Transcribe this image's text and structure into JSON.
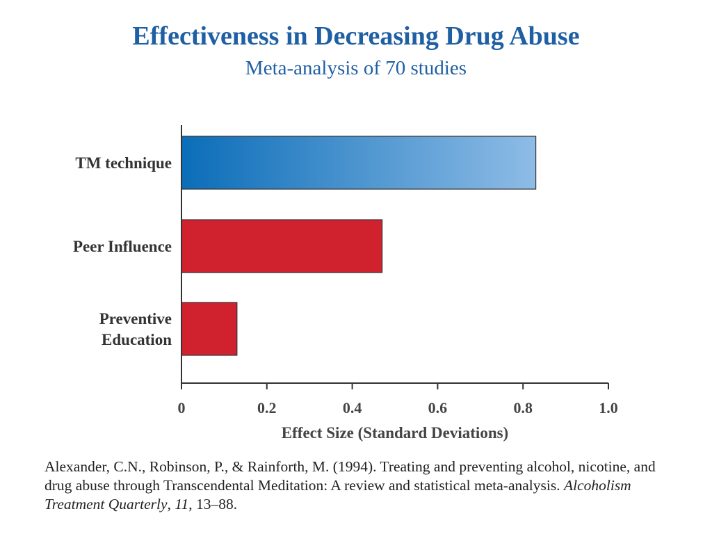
{
  "chart_data": {
    "type": "bar",
    "orientation": "horizontal",
    "title": "Effectiveness in Decreasing Drug Abuse",
    "subtitle": "Meta-analysis of 70 studies",
    "categories": [
      [
        "TM technique"
      ],
      [
        "Peer Influence"
      ],
      [
        "Preventive",
        "Education"
      ]
    ],
    "values": [
      0.83,
      0.47,
      0.13
    ],
    "bar_colors": [
      "gradient-blue",
      "#d0222e",
      "#d0222e"
    ],
    "gradient": {
      "from": "#0b6db8",
      "to": "#8ebce6"
    },
    "xlabel": "Effect Size (Standard Deviations)",
    "xlim": [
      0,
      1.0
    ],
    "xticks": [
      0,
      0.2,
      0.4,
      0.6,
      0.8,
      1.0
    ],
    "xtick_labels": [
      "0",
      "0.2",
      "0.4",
      "0.6",
      "0.8",
      "1.0"
    ],
    "grid": false,
    "legend": "none"
  },
  "citation": {
    "authors": "Alexander, C.N., Robinson, P., & Rainforth, M. (1994). Treating and preventing alcohol, nicotine, and drug abuse through Transcendental Meditation: A review and statistical meta-analysis. ",
    "journal": "Alcoholism Treatment Quarterly",
    "sep1": ", ",
    "volume": "11",
    "pages": ", 13–88."
  },
  "colors": {
    "title": "#1f5fa3",
    "axis": "#333333",
    "bar_red": "#d0222e"
  }
}
